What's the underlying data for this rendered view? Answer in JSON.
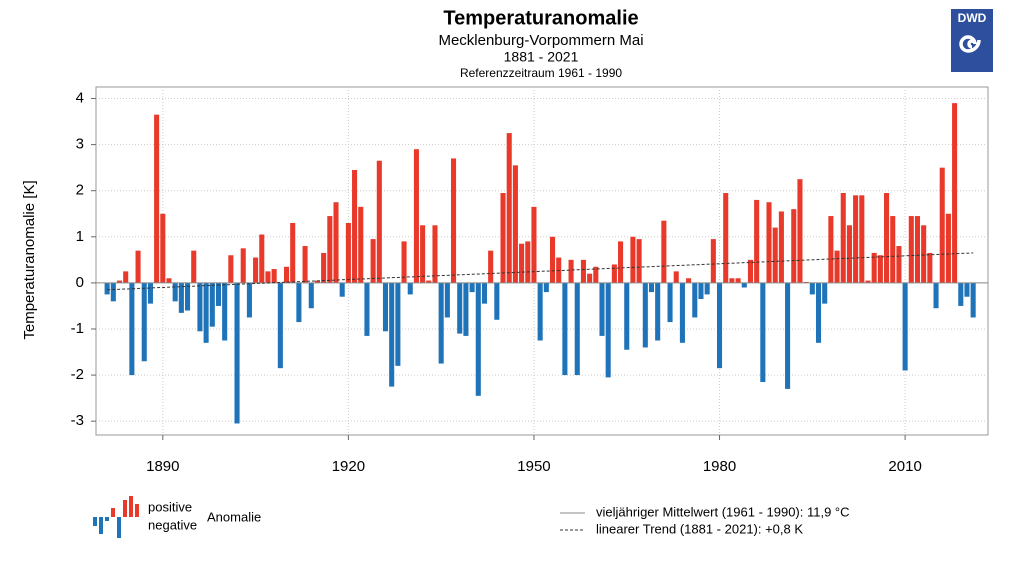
{
  "chart_data": {
    "type": "bar",
    "title": "Temperaturanomalie",
    "subtitle": "Mecklenburg-Vorpommern Mai",
    "period": "1881 - 2021",
    "reference": "Referenzzeitraum 1961 - 1990",
    "y_label": "Temperaturanomalie [K]",
    "logo": "DWD",
    "x": [
      1881,
      1882,
      1883,
      1884,
      1885,
      1886,
      1887,
      1888,
      1889,
      1890,
      1891,
      1892,
      1893,
      1894,
      1895,
      1896,
      1897,
      1898,
      1899,
      1900,
      1901,
      1902,
      1903,
      1904,
      1905,
      1906,
      1907,
      1908,
      1909,
      1910,
      1911,
      1912,
      1913,
      1914,
      1915,
      1916,
      1917,
      1918,
      1919,
      1920,
      1921,
      1922,
      1923,
      1924,
      1925,
      1926,
      1927,
      1928,
      1929,
      1930,
      1931,
      1932,
      1933,
      1934,
      1935,
      1936,
      1937,
      1938,
      1939,
      1940,
      1941,
      1942,
      1943,
      1944,
      1945,
      1946,
      1947,
      1948,
      1949,
      1950,
      1951,
      1952,
      1953,
      1954,
      1955,
      1956,
      1957,
      1958,
      1959,
      1960,
      1961,
      1962,
      1963,
      1964,
      1965,
      1966,
      1967,
      1968,
      1969,
      1970,
      1971,
      1972,
      1973,
      1974,
      1975,
      1976,
      1977,
      1978,
      1979,
      1980,
      1981,
      1982,
      1983,
      1984,
      1985,
      1986,
      1987,
      1988,
      1989,
      1990,
      1991,
      1992,
      1993,
      1994,
      1995,
      1996,
      1997,
      1998,
      1999,
      2000,
      2001,
      2002,
      2003,
      2004,
      2005,
      2006,
      2007,
      2008,
      2009,
      2010,
      2011,
      2012,
      2013,
      2014,
      2015,
      2016,
      2017,
      2018,
      2019,
      2020,
      2021
    ],
    "values": [
      -0.25,
      -0.4,
      0.05,
      0.25,
      -2.0,
      0.7,
      -1.7,
      -0.45,
      3.65,
      1.5,
      0.1,
      -0.4,
      -0.65,
      -0.6,
      0.7,
      -1.05,
      -1.3,
      -0.95,
      -0.5,
      -1.25,
      0.6,
      -3.05,
      0.75,
      -0.75,
      0.55,
      1.05,
      0.25,
      0.3,
      -1.85,
      0.35,
      1.3,
      -0.85,
      0.8,
      -0.55,
      0.05,
      0.65,
      1.45,
      1.75,
      -0.3,
      1.3,
      2.45,
      1.65,
      -1.15,
      0.95,
      2.65,
      -1.05,
      -2.25,
      -1.8,
      0.9,
      -0.25,
      2.9,
      1.25,
      0.05,
      1.25,
      -1.75,
      -0.75,
      2.7,
      -1.1,
      -1.15,
      -0.2,
      -2.45,
      -0.45,
      0.7,
      -0.8,
      1.95,
      3.25,
      2.55,
      0.85,
      0.9,
      1.65,
      -1.25,
      -0.2,
      1.0,
      0.55,
      -2.0,
      0.5,
      -2.0,
      0.5,
      0.2,
      0.35,
      -1.15,
      -2.05,
      0.4,
      0.9,
      -1.45,
      1.0,
      0.95,
      -1.4,
      -0.2,
      -1.25,
      1.35,
      -0.85,
      0.25,
      -1.3,
      0.1,
      -0.75,
      -0.35,
      -0.25,
      0.95,
      -1.85,
      1.95,
      0.1,
      0.1,
      -0.1,
      0.5,
      1.8,
      -2.15,
      1.75,
      1.2,
      1.55,
      -2.3,
      1.6,
      2.25,
      0.02,
      -0.25,
      -1.3,
      -0.45,
      1.45,
      0.7,
      1.95,
      1.25,
      1.9,
      1.9,
      0.05,
      0.65,
      0.6,
      1.95,
      1.45,
      0.8,
      -1.9,
      1.45,
      1.45,
      1.25,
      0.65,
      -0.55,
      2.5,
      1.5,
      3.9,
      -0.5,
      -0.3,
      -0.75
    ],
    "positive_color": "#e8392b",
    "negative_color": "#1f73b8",
    "trend": {
      "x": [
        1881,
        2021
      ],
      "values": [
        -0.15,
        0.65
      ]
    },
    "xlim": [
      1879.2,
      2023.4
    ],
    "ylim": [
      -3.3,
      4.25
    ],
    "xticks": [
      1890,
      1920,
      1950,
      1980,
      2010
    ],
    "yticks": [
      -3,
      -2,
      -1,
      0,
      1,
      2,
      3,
      4
    ],
    "grid": true,
    "legend": {
      "positive": "positive",
      "negative": "negative",
      "anomaly": "Anomalie",
      "mean": "vieljähriger Mittelwert (1961 - 1990): 11,9 °C",
      "trend": "linearer Trend (1881 - 2021): +0,8 K"
    }
  }
}
